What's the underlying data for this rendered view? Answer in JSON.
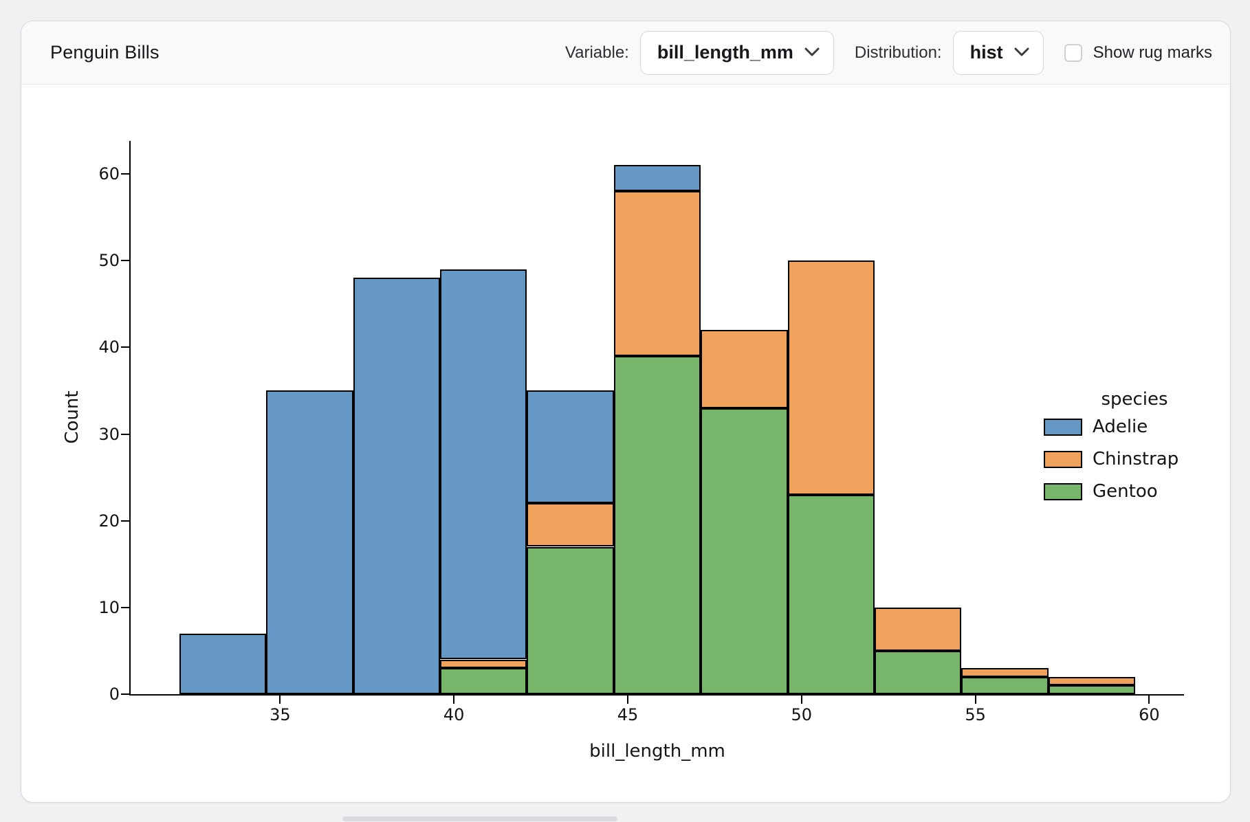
{
  "header": {
    "title": "Penguin Bills",
    "variable_label": "Variable:",
    "variable_value": "bill_length_mm",
    "distribution_label": "Distribution:",
    "distribution_value": "hist",
    "rug_label": "Show rug marks",
    "rug_checked": false,
    "icons": {
      "variable_select": "chevron-down-icon",
      "distribution_select": "chevron-down-icon"
    }
  },
  "chart_data": {
    "type": "bar",
    "subtype": "stacked-histogram",
    "xlabel": "bill_length_mm",
    "ylabel": "Count",
    "x_bin_edges": [
      32.1,
      34.6,
      37.1,
      39.6,
      42.1,
      44.6,
      47.1,
      49.6,
      52.1,
      54.6,
      57.1,
      59.6
    ],
    "series": [
      {
        "name": "Adelie",
        "color": "#6698c5",
        "values": [
          7,
          35,
          48,
          45,
          13,
          3,
          0,
          0,
          0,
          0,
          0
        ]
      },
      {
        "name": "Chinstrap",
        "color": "#f0a25c",
        "values": [
          0,
          0,
          0,
          1,
          5,
          19,
          9,
          27,
          5,
          1,
          1
        ]
      },
      {
        "name": "Gentoo",
        "color": "#76b56a",
        "values": [
          0,
          0,
          0,
          3,
          17,
          39,
          33,
          23,
          5,
          2,
          1
        ]
      }
    ],
    "stack_order_bottom_to_top": [
      "Gentoo",
      "Chinstrap",
      "Adelie"
    ],
    "stack_totals": [
      7,
      35,
      48,
      49,
      35,
      61,
      42,
      50,
      10,
      3,
      2
    ],
    "x_ticks": [
      35,
      40,
      45,
      50,
      55,
      60
    ],
    "y_ticks": [
      0,
      10,
      20,
      30,
      40,
      50,
      60
    ],
    "xlim": [
      30.7,
      61.0
    ],
    "ylim": [
      0,
      63.8
    ],
    "grid": false,
    "bar_edge_color": "#000000",
    "legend": {
      "title": "species",
      "entries": [
        "Adelie",
        "Chinstrap",
        "Gentoo"
      ],
      "position": "center-right"
    }
  }
}
